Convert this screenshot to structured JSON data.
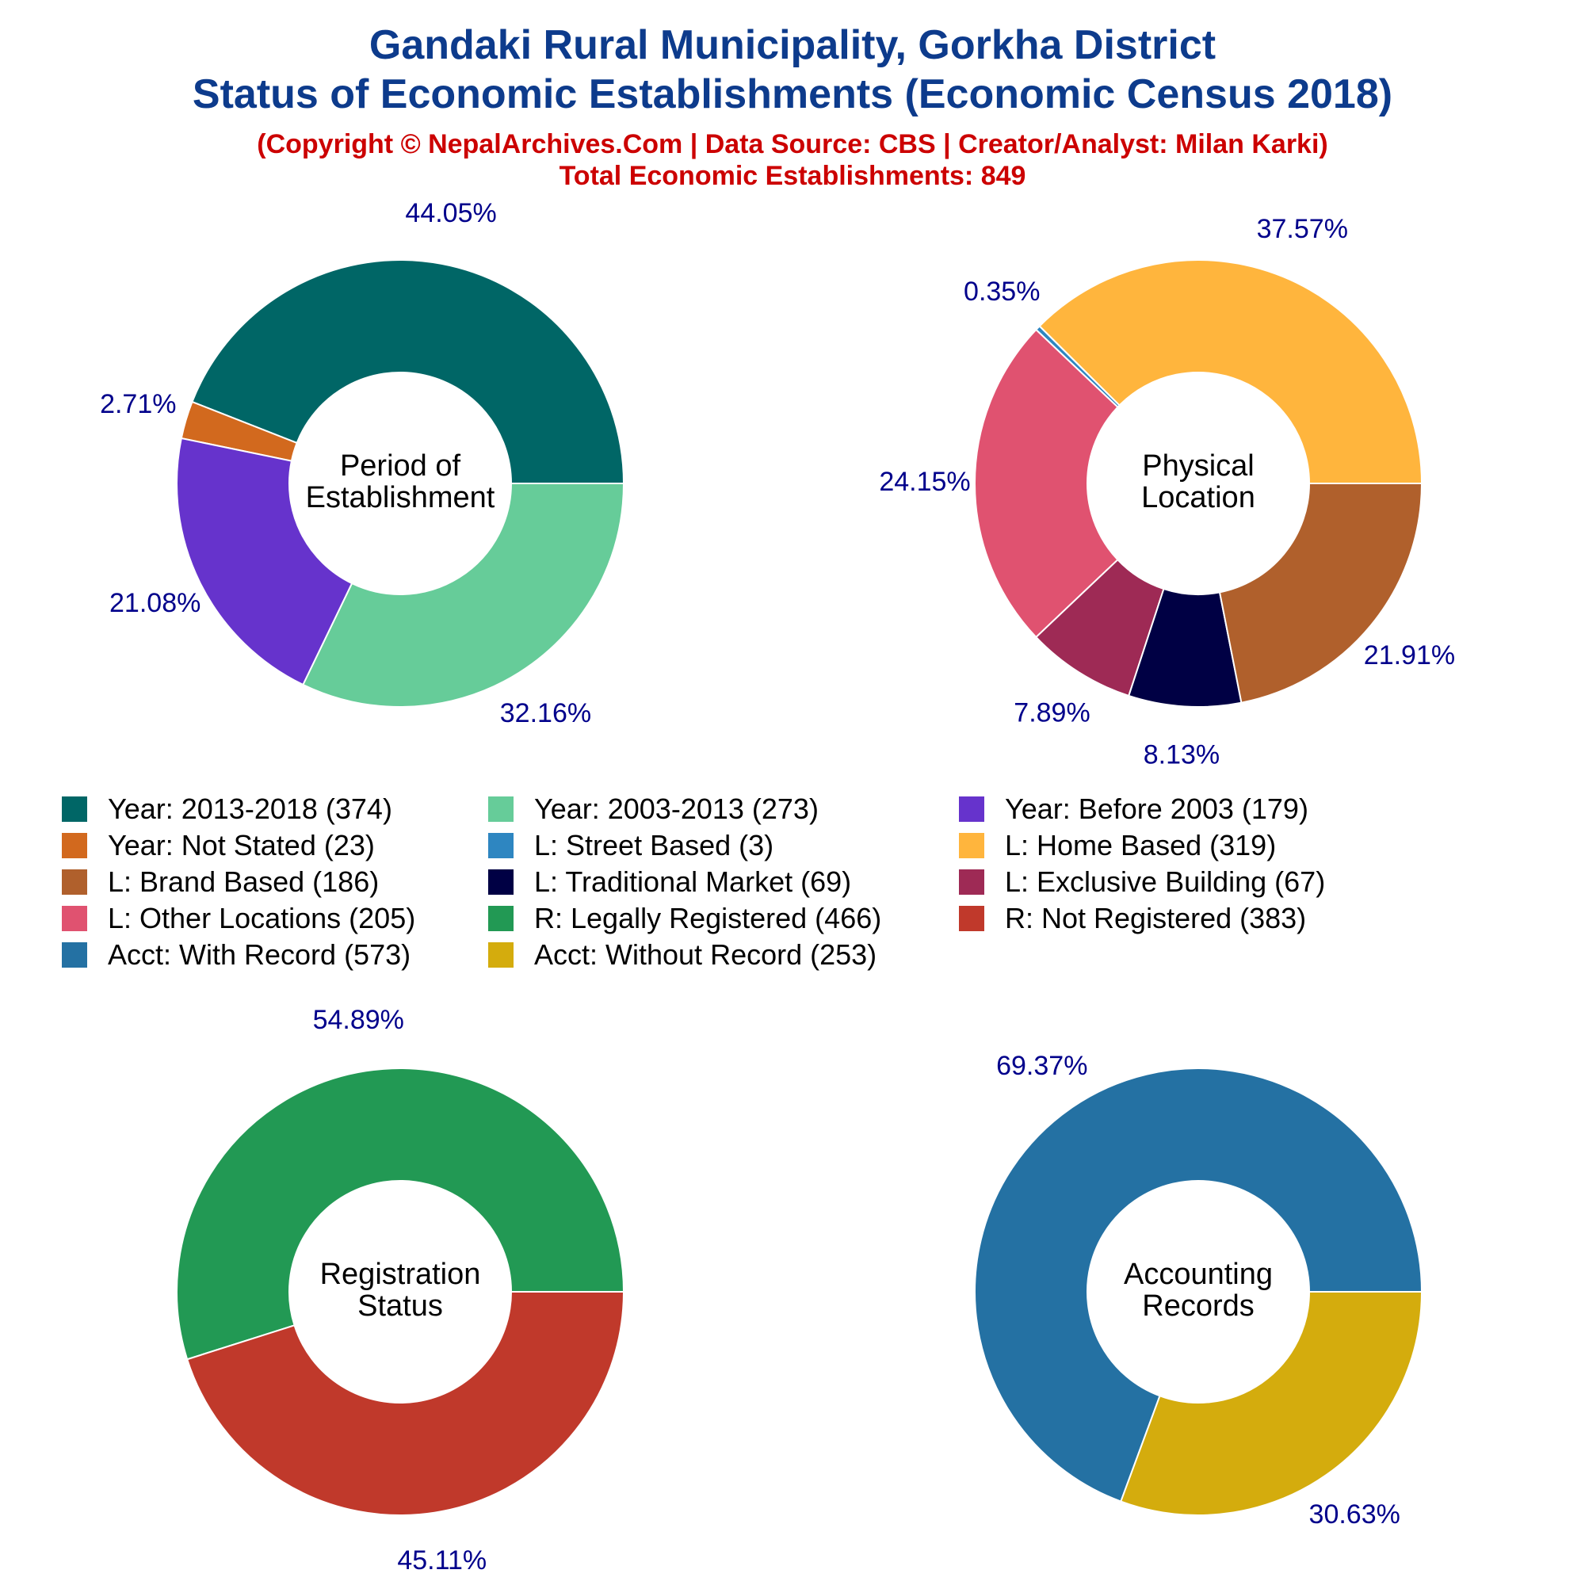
{
  "titles": {
    "line1": "Gandaki Rural Municipality, Gorkha District",
    "line2": "Status of Economic Establishments (Economic Census 2018)",
    "line3": "(Copyright © NepalArchives.Com | Data Source: CBS | Creator/Analyst: Milan Karki)",
    "line4": "Total Economic Establishments: 849"
  },
  "chart_data": [
    {
      "type": "pie",
      "center_label": [
        "Period of",
        "Establishment"
      ],
      "labels": [
        "Year: 2013-2018",
        "Year: Not Stated",
        "Year: Before 2003",
        "Year: 2003-2013"
      ],
      "values": [
        374,
        23,
        179,
        273
      ],
      "percent_labels": [
        "44.05%",
        "2.71%",
        "21.08%",
        "32.16%"
      ],
      "colors": [
        "#006666",
        "#d2691e",
        "#6633cc",
        "#66cc99"
      ]
    },
    {
      "type": "pie",
      "center_label": [
        "Physical",
        "Location"
      ],
      "labels": [
        "L: Home Based",
        "L: Street Based",
        "L: Other Locations",
        "L: Exclusive Building",
        "L: Traditional Market",
        "L: Brand Based"
      ],
      "values": [
        319,
        3,
        205,
        67,
        69,
        186
      ],
      "percent_labels": [
        "37.57%",
        "0.35%",
        "24.15%",
        "7.89%",
        "8.13%",
        "21.91%"
      ],
      "colors": [
        "#ffb53d",
        "#2e86c1",
        "#e05270",
        "#9e2a55",
        "#000044",
        "#b0602c"
      ]
    },
    {
      "type": "pie",
      "center_label": [
        "Registration",
        "Status"
      ],
      "labels": [
        "R: Legally Registered",
        "R: Not Registered"
      ],
      "values": [
        466,
        383
      ],
      "percent_labels": [
        "54.89%",
        "45.11%"
      ],
      "colors": [
        "#229954",
        "#c0392b"
      ]
    },
    {
      "type": "pie",
      "center_label": [
        "Accounting",
        "Records"
      ],
      "labels": [
        "Acct: With Record",
        "Acct: Without Record"
      ],
      "values": [
        573,
        253
      ],
      "percent_labels": [
        "69.37%",
        "30.63%"
      ],
      "colors": [
        "#2471a3",
        "#d4ac0d"
      ]
    }
  ],
  "legend": {
    "rows": [
      [
        {
          "label": "Year: 2013-2018 (374)",
          "color": "#006666"
        },
        {
          "label": "Year: 2003-2013 (273)",
          "color": "#66cc99"
        },
        {
          "label": "Year: Before 2003 (179)",
          "color": "#6633cc"
        }
      ],
      [
        {
          "label": "Year: Not Stated (23)",
          "color": "#d2691e"
        },
        {
          "label": "L: Street Based (3)",
          "color": "#2e86c1"
        },
        {
          "label": "L: Home Based (319)",
          "color": "#ffb53d"
        }
      ],
      [
        {
          "label": "L: Brand Based (186)",
          "color": "#b0602c"
        },
        {
          "label": "L: Traditional Market (69)",
          "color": "#000044"
        },
        {
          "label": "L: Exclusive Building (67)",
          "color": "#9e2a55"
        }
      ],
      [
        {
          "label": "L: Other Locations (205)",
          "color": "#e05270"
        },
        {
          "label": "R: Legally Registered (466)",
          "color": "#229954"
        },
        {
          "label": "R: Not Registered (383)",
          "color": "#c0392b"
        }
      ],
      [
        {
          "label": "Acct: With Record (573)",
          "color": "#2471a3"
        },
        {
          "label": "Acct: Without Record (253)",
          "color": "#d4ac0d"
        }
      ]
    ]
  }
}
